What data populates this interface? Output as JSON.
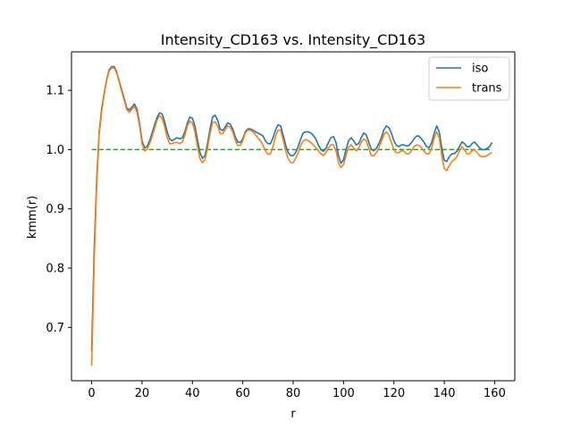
{
  "chart_data": {
    "type": "line",
    "title": "Intensity_CD163 vs. Intensity_CD163",
    "xlabel": "r",
    "ylabel": "kmm(r)",
    "xlim": [
      -8,
      168
    ],
    "ylim": [
      0.61,
      1.165
    ],
    "xticks": [
      0,
      20,
      40,
      60,
      80,
      100,
      120,
      140,
      160
    ],
    "yticks": [
      0.7,
      0.8,
      0.9,
      1.0,
      1.1
    ],
    "ytick_labels": [
      "0.7",
      "0.8",
      "0.9",
      "1.0",
      "1.1"
    ],
    "grid": false,
    "legend": "top-right",
    "reference_line": {
      "y": 1.0,
      "color": "#2ca02c",
      "style": "dashed",
      "x_range": [
        0,
        159
      ]
    },
    "series": [
      {
        "name": "iso",
        "color": "#1f77b4",
        "x": [
          0,
          1,
          2,
          3,
          4,
          5,
          6,
          7,
          8,
          9,
          10,
          11,
          12,
          13,
          14,
          15,
          16,
          17,
          18,
          19,
          20,
          21,
          22,
          23,
          24,
          25,
          26,
          27,
          28,
          29,
          30,
          31,
          32,
          33,
          34,
          35,
          36,
          37,
          38,
          39,
          40,
          41,
          42,
          43,
          44,
          45,
          46,
          47,
          48,
          49,
          50,
          51,
          52,
          53,
          54,
          55,
          56,
          57,
          58,
          59,
          60,
          61,
          62,
          63,
          64,
          65,
          66,
          67,
          68,
          69,
          70,
          71,
          72,
          73,
          74,
          75,
          76,
          77,
          78,
          79,
          80,
          81,
          82,
          83,
          84,
          85,
          86,
          87,
          88,
          89,
          90,
          91,
          92,
          93,
          94,
          95,
          96,
          97,
          98,
          99,
          100,
          101,
          102,
          103,
          104,
          105,
          106,
          107,
          108,
          109,
          110,
          111,
          112,
          113,
          114,
          115,
          116,
          117,
          118,
          119,
          120,
          121,
          122,
          123,
          124,
          125,
          126,
          127,
          128,
          129,
          130,
          131,
          132,
          133,
          134,
          135,
          136,
          137,
          138,
          139,
          140,
          141,
          142,
          143,
          144,
          145,
          146,
          147,
          148,
          149,
          150,
          151,
          152,
          153,
          154,
          155,
          156,
          157,
          158,
          159
        ],
        "y": [
          0.66,
          0.83,
          0.95,
          1.03,
          1.07,
          1.095,
          1.12,
          1.135,
          1.14,
          1.14,
          1.13,
          1.115,
          1.1,
          1.085,
          1.07,
          1.067,
          1.072,
          1.077,
          1.068,
          1.045,
          1.015,
          1.003,
          1.005,
          1.015,
          1.028,
          1.042,
          1.055,
          1.062,
          1.06,
          1.047,
          1.03,
          1.018,
          1.015,
          1.018,
          1.02,
          1.018,
          1.02,
          1.03,
          1.045,
          1.055,
          1.053,
          1.04,
          1.017,
          0.995,
          0.985,
          0.99,
          1.01,
          1.035,
          1.055,
          1.058,
          1.05,
          1.035,
          1.032,
          1.038,
          1.045,
          1.043,
          1.035,
          1.022,
          1.013,
          1.012,
          1.018,
          1.03,
          1.035,
          1.035,
          1.033,
          1.03,
          1.028,
          1.026,
          1.023,
          1.015,
          1.01,
          1.01,
          1.02,
          1.033,
          1.042,
          1.04,
          1.025,
          1.008,
          0.995,
          0.99,
          0.99,
          0.995,
          1.005,
          1.018,
          1.028,
          1.03,
          1.03,
          1.028,
          1.024,
          1.018,
          1.008,
          1.0,
          0.997,
          1.002,
          1.012,
          1.02,
          1.022,
          1.012,
          0.99,
          0.977,
          0.983,
          1.0,
          1.015,
          1.02,
          1.015,
          1.008,
          1.01,
          1.02,
          1.028,
          1.025,
          1.013,
          1.001,
          0.998,
          1.002,
          1.01,
          1.02,
          1.033,
          1.04,
          1.037,
          1.028,
          1.015,
          1.007,
          1.005,
          1.008,
          1.008,
          1.006,
          1.007,
          1.012,
          1.018,
          1.023,
          1.023,
          1.018,
          1.012,
          1.005,
          1.003,
          1.012,
          1.028,
          1.04,
          1.03,
          1.003,
          0.982,
          0.98,
          0.988,
          0.993,
          0.993,
          0.997,
          1.005,
          1.013,
          1.01,
          1.005,
          1.005,
          1.01,
          1.013,
          1.008,
          1.003,
          1.0,
          1.0,
          1.002,
          1.005,
          1.012
        ]
      },
      {
        "name": "trans",
        "color": "#ff7f0e",
        "x": [
          0,
          1,
          2,
          3,
          4,
          5,
          6,
          7,
          8,
          9,
          10,
          11,
          12,
          13,
          14,
          15,
          16,
          17,
          18,
          19,
          20,
          21,
          22,
          23,
          24,
          25,
          26,
          27,
          28,
          29,
          30,
          31,
          32,
          33,
          34,
          35,
          36,
          37,
          38,
          39,
          40,
          41,
          42,
          43,
          44,
          45,
          46,
          47,
          48,
          49,
          50,
          51,
          52,
          53,
          54,
          55,
          56,
          57,
          58,
          59,
          60,
          61,
          62,
          63,
          64,
          65,
          66,
          67,
          68,
          69,
          70,
          71,
          72,
          73,
          74,
          75,
          76,
          77,
          78,
          79,
          80,
          81,
          82,
          83,
          84,
          85,
          86,
          87,
          88,
          89,
          90,
          91,
          92,
          93,
          94,
          95,
          96,
          97,
          98,
          99,
          100,
          101,
          102,
          103,
          104,
          105,
          106,
          107,
          108,
          109,
          110,
          111,
          112,
          113,
          114,
          115,
          116,
          117,
          118,
          119,
          120,
          121,
          122,
          123,
          124,
          125,
          126,
          127,
          128,
          129,
          130,
          131,
          132,
          133,
          134,
          135,
          136,
          137,
          138,
          139,
          140,
          141,
          142,
          143,
          144,
          145,
          146,
          147,
          148,
          149,
          150,
          151,
          152,
          153,
          154,
          155,
          156,
          157,
          158,
          159
        ],
        "y": [
          0.635,
          0.81,
          0.94,
          1.025,
          1.065,
          1.093,
          1.118,
          1.133,
          1.138,
          1.138,
          1.128,
          1.113,
          1.097,
          1.082,
          1.067,
          1.063,
          1.068,
          1.073,
          1.063,
          1.04,
          1.01,
          0.998,
          1.0,
          1.01,
          1.022,
          1.036,
          1.05,
          1.057,
          1.053,
          1.038,
          1.02,
          1.01,
          1.01,
          1.012,
          1.012,
          1.01,
          1.013,
          1.024,
          1.04,
          1.048,
          1.045,
          1.03,
          1.005,
          0.985,
          0.978,
          0.983,
          1.002,
          1.027,
          1.045,
          1.047,
          1.04,
          1.027,
          1.027,
          1.033,
          1.04,
          1.038,
          1.03,
          1.016,
          1.007,
          1.007,
          1.015,
          1.028,
          1.033,
          1.033,
          1.03,
          1.025,
          1.02,
          1.015,
          1.008,
          0.998,
          0.992,
          0.993,
          1.005,
          1.022,
          1.033,
          1.033,
          1.017,
          0.998,
          0.985,
          0.978,
          0.978,
          0.985,
          0.995,
          1.007,
          1.015,
          1.017,
          1.015,
          1.012,
          1.008,
          1.003,
          0.998,
          0.993,
          0.99,
          0.995,
          1.003,
          1.008,
          1.008,
          0.998,
          0.978,
          0.97,
          0.975,
          0.99,
          1.004,
          1.008,
          1.003,
          0.998,
          1.002,
          1.012,
          1.018,
          1.015,
          1.003,
          0.99,
          0.99,
          0.995,
          1.003,
          1.013,
          1.025,
          1.03,
          1.025,
          1.012,
          1.0,
          0.995,
          0.995,
          0.998,
          0.997,
          0.993,
          0.993,
          0.998,
          1.005,
          1.008,
          1.007,
          1.003,
          0.997,
          0.993,
          0.993,
          1.003,
          1.02,
          1.03,
          1.02,
          0.99,
          0.968,
          0.965,
          0.973,
          0.98,
          0.983,
          0.988,
          0.998,
          1.005,
          1.0,
          0.993,
          0.993,
          0.998,
          1.0,
          0.995,
          0.99,
          0.988,
          0.988,
          0.99,
          0.993,
          0.995
        ]
      }
    ]
  }
}
